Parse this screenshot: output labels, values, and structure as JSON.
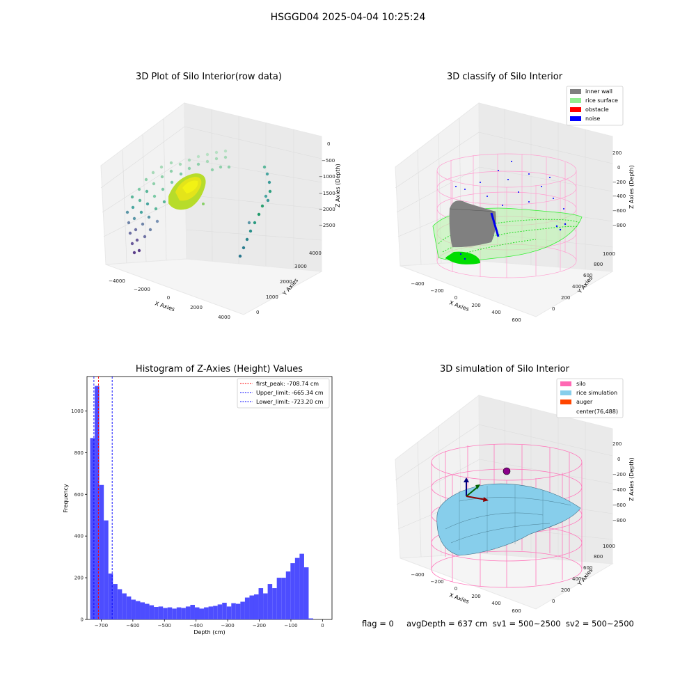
{
  "figure_title": "HSGGD04 2025-04-04 10:25:24",
  "footer_text": "flag = 0     avgDepth = 637 cm  sv1 = 500~2500  sv2 = 500~2500",
  "panel1": {
    "title": "3D Plot of Silo Interior(row data)",
    "xlabel": "X Axies",
    "ylabel": "Y Axies",
    "zlabel": "Z Axies (Depth)",
    "xticks": [
      "−4000",
      "−2000",
      "0",
      "2000",
      "4000"
    ],
    "yticks": [
      "0",
      "1000",
      "2000",
      "3000",
      "4000"
    ],
    "zticks": [
      "0",
      "−500",
      "−1000",
      "−1500",
      "−2000",
      "−2500"
    ]
  },
  "panel2": {
    "title": "3D classify of Silo Interior",
    "xlabel": "X Axies",
    "ylabel": "Y Axies",
    "zlabel": "Z Axies (Depth)",
    "xticks": [
      "−400",
      "−200",
      "0",
      "200",
      "400",
      "600"
    ],
    "yticks": [
      "0",
      "200",
      "400",
      "600",
      "800",
      "1000"
    ],
    "zticks": [
      "200",
      "0",
      "−200",
      "−400",
      "−600",
      "−800"
    ],
    "legend": [
      {
        "label": "inner wall",
        "color": "#808080"
      },
      {
        "label": "rice surface",
        "color": "#90ee90"
      },
      {
        "label": "obstacle",
        "color": "#ff0000"
      },
      {
        "label": "noise",
        "color": "#0000ff"
      }
    ]
  },
  "panel4": {
    "title": "3D simulation of Silo Interior",
    "xlabel": "X Axies",
    "ylabel": "Y Axies",
    "zlabel": "Z Axies (Depth)",
    "xticks": [
      "−400",
      "−200",
      "0",
      "200",
      "400",
      "600"
    ],
    "yticks": [
      "0",
      "200",
      "400",
      "600",
      "800",
      "1000"
    ],
    "zticks": [
      "200",
      "0",
      "−200",
      "−400",
      "−600",
      "−800"
    ],
    "legend": [
      {
        "label": "silo",
        "color": "#ff69b4"
      },
      {
        "label": "rice simulation",
        "color": "#87ceeb"
      },
      {
        "label": "auger",
        "color": "#ff4500"
      },
      {
        "label": "center(76,488)",
        "color": ""
      }
    ]
  },
  "chart_data": {
    "type": "bar",
    "title": "Histogram of Z-Axies (Height) Values",
    "xlabel": "Depth (cm)",
    "ylabel": "Frequency",
    "xlim": [
      -745,
      30
    ],
    "ylim": [
      0,
      1165
    ],
    "xticks": [
      -700,
      -600,
      -500,
      -400,
      -300,
      -200,
      -100,
      0
    ],
    "xtick_labels": [
      "−700",
      "−600",
      "−500",
      "−400",
      "−300",
      "−200",
      "−100",
      "0"
    ],
    "yticks": [
      0,
      200,
      400,
      600,
      800,
      1000
    ],
    "bin_start": -735,
    "bin_width": 14.4,
    "values": [
      870,
      1120,
      645,
      475,
      220,
      170,
      145,
      125,
      110,
      95,
      88,
      82,
      75,
      68,
      60,
      62,
      55,
      58,
      52,
      58,
      55,
      62,
      70,
      58,
      52,
      58,
      62,
      65,
      72,
      80,
      62,
      78,
      75,
      85,
      105,
      115,
      120,
      150,
      125,
      170,
      150,
      200,
      200,
      230,
      270,
      295,
      315,
      250,
      5
    ],
    "vlines": [
      {
        "label": "first_peak: -708.74 cm",
        "x": -708.74,
        "color": "#ff0000"
      },
      {
        "label": "Upper_limit: -665.34 cm",
        "x": -665.34,
        "color": "#0000ff"
      },
      {
        "label": "Lower_limit: -723.20 cm",
        "x": -723.2,
        "color": "#0000ff"
      }
    ],
    "bar_color": "#4d4dff"
  }
}
